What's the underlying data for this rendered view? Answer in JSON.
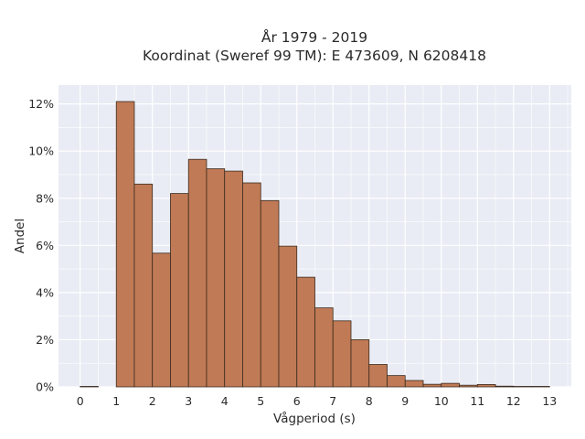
{
  "chart_data": {
    "type": "bar",
    "title": "År 1979 - 2019",
    "subtitle": "Koordinat (Sweref 99 TM): E 473609, N 6208418",
    "xlabel": "Vågperiod (s)",
    "ylabel": "Andel",
    "xlim": [
      -0.6,
      13.6
    ],
    "ylim": [
      0,
      12.8
    ],
    "bin_width": 0.5,
    "x_ticks": [
      0,
      1,
      2,
      3,
      4,
      5,
      6,
      7,
      8,
      9,
      10,
      11,
      12,
      13
    ],
    "y_ticks": [
      0,
      2,
      4,
      6,
      8,
      10,
      12
    ],
    "y_tick_labels": [
      "0%",
      "2%",
      "4%",
      "6%",
      "8%",
      "10%",
      "12%"
    ],
    "bins": [
      {
        "x0": 0.0,
        "value": 0.02
      },
      {
        "x0": 1.0,
        "value": 12.1
      },
      {
        "x0": 1.5,
        "value": 8.6
      },
      {
        "x0": 2.0,
        "value": 5.67
      },
      {
        "x0": 2.5,
        "value": 8.2
      },
      {
        "x0": 3.0,
        "value": 9.65
      },
      {
        "x0": 3.5,
        "value": 9.25
      },
      {
        "x0": 4.0,
        "value": 9.15
      },
      {
        "x0": 4.5,
        "value": 8.65
      },
      {
        "x0": 5.0,
        "value": 7.9
      },
      {
        "x0": 5.5,
        "value": 5.97
      },
      {
        "x0": 6.0,
        "value": 4.65
      },
      {
        "x0": 6.5,
        "value": 3.35
      },
      {
        "x0": 7.0,
        "value": 2.8
      },
      {
        "x0": 7.5,
        "value": 2.0
      },
      {
        "x0": 8.0,
        "value": 0.95
      },
      {
        "x0": 8.5,
        "value": 0.48
      },
      {
        "x0": 9.0,
        "value": 0.27
      },
      {
        "x0": 9.5,
        "value": 0.11
      },
      {
        "x0": 10.0,
        "value": 0.15
      },
      {
        "x0": 10.5,
        "value": 0.07
      },
      {
        "x0": 11.0,
        "value": 0.1
      },
      {
        "x0": 11.5,
        "value": 0.03
      },
      {
        "x0": 12.0,
        "value": 0.02
      },
      {
        "x0": 12.5,
        "value": 0.02
      }
    ],
    "bar_color": "#c07a55",
    "bar_edge_color": "#3a2a1f",
    "plot_background": "#e9ecf4",
    "grid": true,
    "grid_color": "#ffffff"
  }
}
